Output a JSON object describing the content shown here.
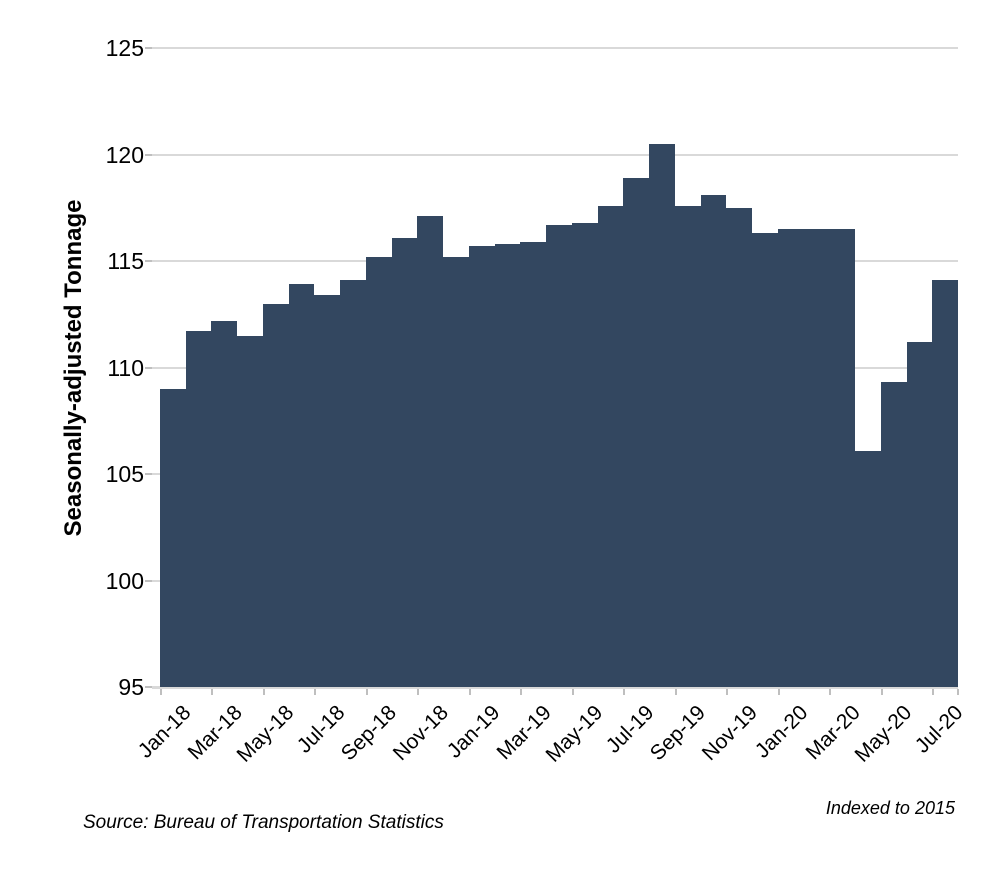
{
  "chart_data": {
    "type": "bar",
    "title": "",
    "xlabel": "",
    "ylabel": "Seasonally-adjusted Tonnage",
    "ylim": [
      95,
      125
    ],
    "ytick_step": 5,
    "grid": "horizontal",
    "legend": "none",
    "bar_color": "#334760",
    "gridline_color": "#D9D9D9",
    "tick_color": "#BFBFBF",
    "x_label_every": 2,
    "categories": [
      "Jan-18",
      "Feb-18",
      "Mar-18",
      "Apr-18",
      "May-18",
      "Jun-18",
      "Jul-18",
      "Aug-18",
      "Sep-18",
      "Oct-18",
      "Nov-18",
      "Dec-18",
      "Jan-19",
      "Feb-19",
      "Mar-19",
      "Apr-19",
      "May-19",
      "Jun-19",
      "Jul-19",
      "Aug-19",
      "Sep-19",
      "Oct-19",
      "Nov-19",
      "Dec-19",
      "Jan-20",
      "Feb-20",
      "Mar-20",
      "Apr-20",
      "May-20",
      "Jun-20",
      "Jul-20"
    ],
    "values": [
      109.0,
      111.7,
      112.2,
      111.5,
      113.0,
      113.9,
      113.4,
      114.1,
      115.2,
      116.1,
      117.1,
      115.2,
      115.7,
      115.8,
      115.9,
      116.7,
      116.8,
      117.6,
      118.9,
      120.5,
      117.6,
      118.1,
      117.5,
      116.3,
      116.5,
      116.5,
      116.5,
      106.1,
      109.3,
      111.2,
      114.1
    ]
  },
  "footer": {
    "source_note": "Source: Bureau of Transportation Statistics",
    "index_note": "Indexed to 2015"
  }
}
